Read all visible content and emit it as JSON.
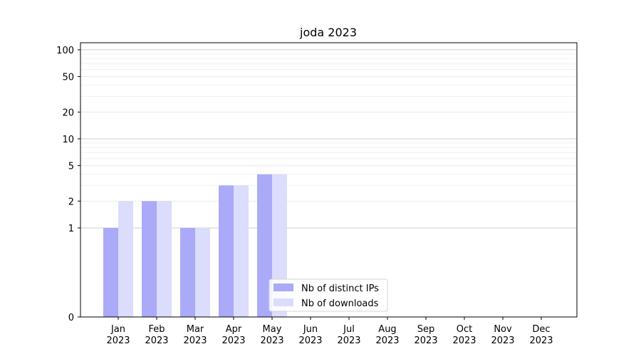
{
  "chart_data": {
    "type": "bar",
    "title": "joda 2023",
    "xlabel": "",
    "ylabel": "",
    "yscale": "symlog",
    "ylim": [
      0,
      120
    ],
    "yticks": [
      0,
      1,
      2,
      5,
      10,
      20,
      50,
      100
    ],
    "categories": [
      "Jan\n2023",
      "Feb\n2023",
      "Mar\n2023",
      "Apr\n2023",
      "May\n2023",
      "Jun\n2023",
      "Jul\n2023",
      "Aug\n2023",
      "Sep\n2023",
      "Oct\n2023",
      "Nov\n2023",
      "Dec\n2023"
    ],
    "series": [
      {
        "name": "Nb of distinct IPs",
        "color": "#aaaaf8",
        "values": [
          1,
          2,
          1,
          3,
          4,
          0,
          0,
          0,
          0,
          0,
          0,
          0
        ]
      },
      {
        "name": "Nb of downloads",
        "color": "#dcdcfc",
        "values": [
          2,
          2,
          1,
          3,
          4,
          0,
          0,
          0,
          0,
          0,
          0,
          0
        ]
      }
    ],
    "grid": true,
    "legend_position": "lower-center"
  }
}
